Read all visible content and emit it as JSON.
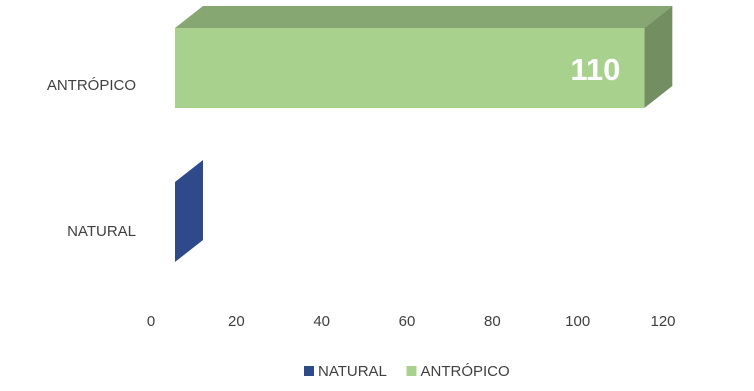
{
  "chart_data": {
    "type": "bar",
    "orientation": "horizontal",
    "style": "3d",
    "categories": [
      "NATURAL",
      "ANTRÓPICO"
    ],
    "series": [
      {
        "name": "NATURAL",
        "values": [
          0,
          null
        ],
        "color": "#2e4a8a"
      },
      {
        "name": "ANTRÓPICO",
        "values": [
          null,
          110
        ],
        "color": "#a9d18e"
      }
    ],
    "data_labels": [
      {
        "series": "ANTRÓPICO",
        "category": "ANTRÓPICO",
        "text": "110"
      }
    ],
    "xlim": [
      0,
      120
    ],
    "x_ticks": [
      "0",
      "20",
      "40",
      "60",
      "80",
      "100",
      "120"
    ],
    "grid": false,
    "legend_position": "bottom"
  }
}
